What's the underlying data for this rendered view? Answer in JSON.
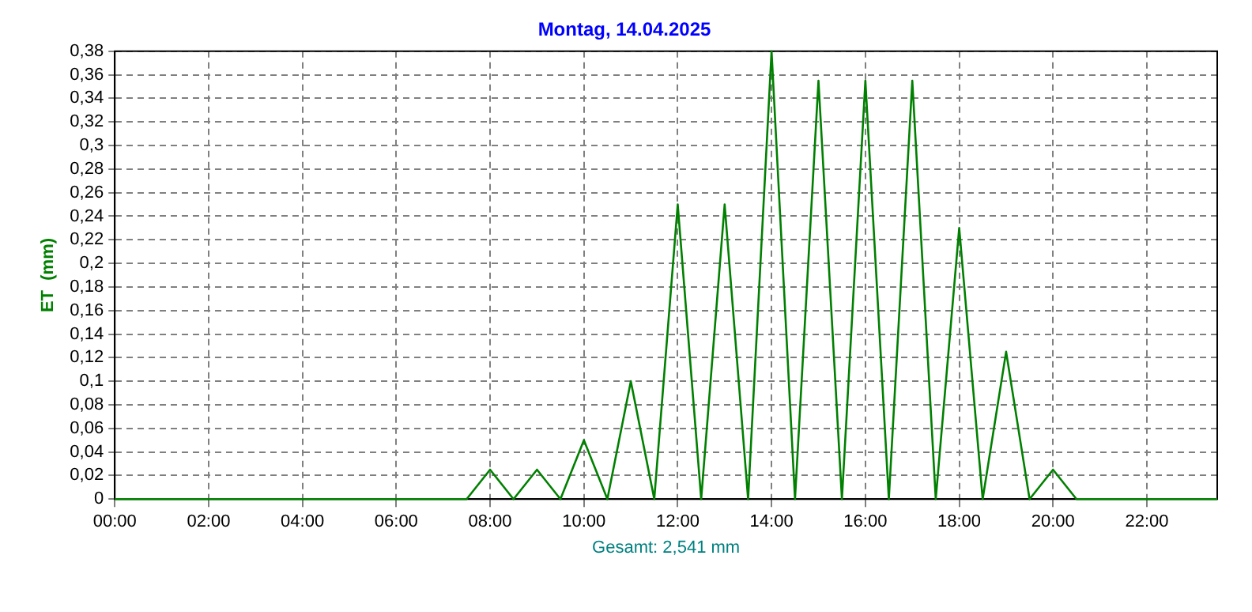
{
  "chart_data": {
    "type": "line",
    "title": "Montag, 14.04.2025",
    "xlabel": "Gesamt: 2,541 mm",
    "ylabel": "ET  (mm)",
    "x": [
      0,
      7.5,
      8,
      8.5,
      9,
      9.5,
      10,
      10.5,
      11,
      11.5,
      12,
      12.5,
      13,
      13.5,
      14,
      14.5,
      15,
      15.5,
      16,
      16.5,
      17,
      17.5,
      18,
      18.5,
      19,
      19.5,
      20,
      20.5,
      23.5
    ],
    "series": [
      {
        "color": "#008000",
        "values": [
          0,
          0,
          0.025,
          0,
          0.025,
          0,
          0.05,
          0,
          0.1,
          0,
          0.25,
          0,
          0.25,
          0,
          0.38,
          0,
          0.355,
          0,
          0.355,
          0,
          0.355,
          0,
          0.23,
          0,
          0.125,
          0,
          0.025,
          0,
          0
        ]
      }
    ],
    "xlim": [
      0,
      23.5
    ],
    "xticks": [
      {
        "value": 0,
        "label": "00:00"
      },
      {
        "value": 2,
        "label": "02:00"
      },
      {
        "value": 4,
        "label": "04:00"
      },
      {
        "value": 6,
        "label": "06:00"
      },
      {
        "value": 8,
        "label": "08:00"
      },
      {
        "value": 10,
        "label": "10:00"
      },
      {
        "value": 12,
        "label": "12:00"
      },
      {
        "value": 14,
        "label": "14:00"
      },
      {
        "value": 16,
        "label": "16:00"
      },
      {
        "value": 18,
        "label": "18:00"
      },
      {
        "value": 20,
        "label": "20:00"
      },
      {
        "value": 22,
        "label": "22:00"
      }
    ],
    "ylim": [
      0,
      0.38
    ],
    "yticks": [
      0,
      {
        "value": 0.02,
        "label": "0,02"
      },
      {
        "value": 0.04,
        "label": "0,04"
      },
      {
        "value": 0.06,
        "label": "0,06"
      },
      {
        "value": 0.08,
        "label": "0,08"
      },
      {
        "value": 0.1,
        "label": "0,1"
      },
      {
        "value": 0.12,
        "label": "0,12"
      },
      {
        "value": 0.14,
        "label": "0,14"
      },
      {
        "value": 0.16,
        "label": "0,16"
      },
      {
        "value": 0.18,
        "label": "0,18"
      },
      {
        "value": 0.2,
        "label": "0,2"
      },
      {
        "value": 0.22,
        "label": "0,22"
      },
      {
        "value": 0.24,
        "label": "0,24"
      },
      {
        "value": 0.26,
        "label": "0,26"
      },
      {
        "value": 0.28,
        "label": "0,28"
      },
      {
        "value": 0.3,
        "label": "0,3"
      },
      {
        "value": 0.32,
        "label": "0,32"
      },
      {
        "value": 0.34,
        "label": "0,34"
      },
      {
        "value": 0.36,
        "label": "0,36"
      },
      {
        "value": 0.38,
        "label": "0,38"
      }
    ],
    "grid": true,
    "legend": false,
    "marker": "none",
    "line_style": "solid"
  }
}
